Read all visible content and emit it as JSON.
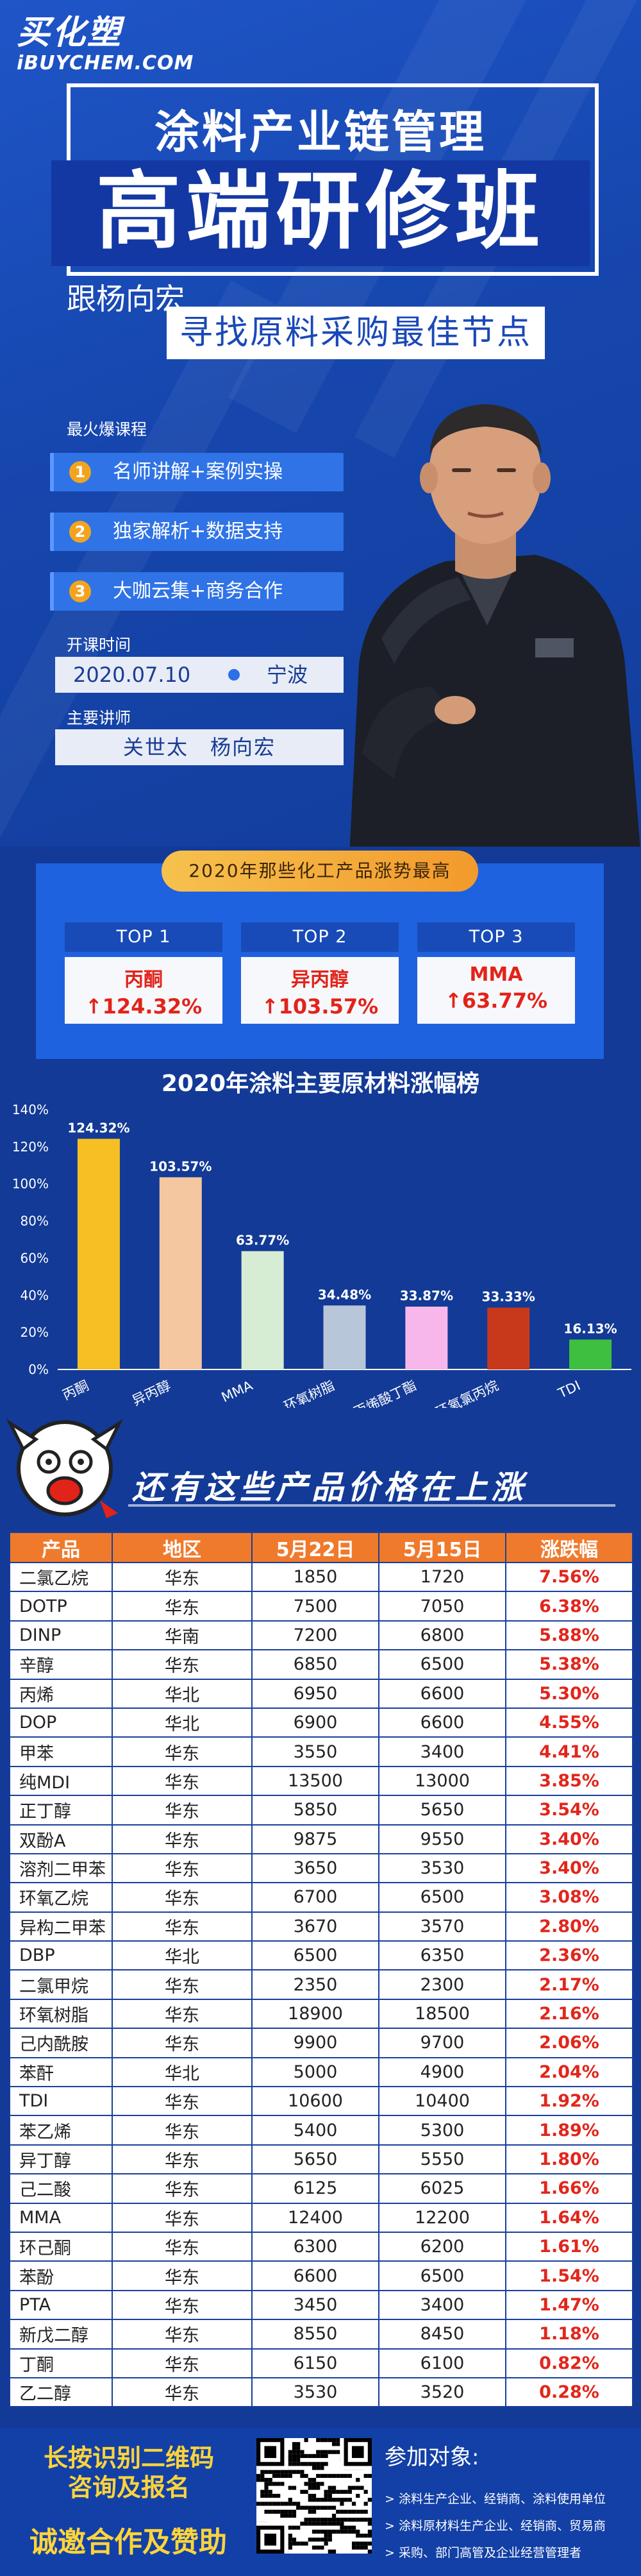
{
  "brand": {
    "name_cn": "买化塑",
    "name_en": "iBUYCHEM.COM"
  },
  "hero": {
    "title1": "涂料产业链管理",
    "title2": "高端研修班",
    "subtitle1": "跟杨向宏",
    "subtitle2": "寻找原料采购最佳节点",
    "courses_label": "最火爆课程",
    "courses": [
      {
        "num": "1",
        "text": "名师讲解+案例实操"
      },
      {
        "num": "2",
        "text": "独家解析+数据支持"
      },
      {
        "num": "3",
        "text": "大咖云集+商务合作"
      }
    ],
    "date_label": "开课时间",
    "date": "2020.07.10",
    "city": "宁波",
    "lecturer_label": "主要讲师",
    "lecturers": "关世太　杨向宏"
  },
  "top3": {
    "banner": "2020年那些化工产品涨势最高",
    "items": [
      {
        "rank": "TOP 1",
        "name": "丙酮",
        "pct": "↑124.32%"
      },
      {
        "rank": "TOP 2",
        "name": "异丙醇",
        "pct": "↑103.57%"
      },
      {
        "rank": "TOP 3",
        "name": "MMA",
        "pct": "↑63.77%"
      }
    ]
  },
  "chart_data": {
    "type": "bar",
    "title": "2020年涂料主要原材料涨幅榜",
    "categories": [
      "丙酮",
      "异丙醇",
      "MMA",
      "环氧树脂",
      "丙烯酸丁酯",
      "环氧氯丙烷",
      "TDI"
    ],
    "values": [
      124.32,
      103.57,
      63.77,
      34.48,
      33.87,
      33.33,
      16.13
    ],
    "value_labels": [
      "124.32%",
      "103.57%",
      "63.77%",
      "34.48%",
      "33.87%",
      "33.33%",
      "16.13%"
    ],
    "colors": [
      "#f6c024",
      "#f4c7a1",
      "#d6ecd3",
      "#b7c6d8",
      "#f7b7ea",
      "#c8391b",
      "#3fbf3f"
    ],
    "ylim": [
      0,
      140
    ],
    "yticks": [
      "0%",
      "20%",
      "40%",
      "60%",
      "80%",
      "100%",
      "120%",
      "140%"
    ],
    "grid": false,
    "xlabel": "",
    "ylabel": ""
  },
  "banner2": {
    "text": "还有这些产品价格在上涨"
  },
  "table": {
    "headers": [
      "产品",
      "地区",
      "5月22日",
      "5月15日",
      "涨跌幅"
    ],
    "rows": [
      [
        "二氯乙烷",
        "华东",
        "1850",
        "1720",
        "7.56%"
      ],
      [
        "DOTP",
        "华东",
        "7500",
        "7050",
        "6.38%"
      ],
      [
        "DINP",
        "华南",
        "7200",
        "6800",
        "5.88%"
      ],
      [
        "辛醇",
        "华东",
        "6850",
        "6500",
        "5.38%"
      ],
      [
        "丙烯",
        "华北",
        "6950",
        "6600",
        "5.30%"
      ],
      [
        "DOP",
        "华北",
        "6900",
        "6600",
        "4.55%"
      ],
      [
        "甲苯",
        "华东",
        "3550",
        "3400",
        "4.41%"
      ],
      [
        "纯MDI",
        "华东",
        "13500",
        "13000",
        "3.85%"
      ],
      [
        "正丁醇",
        "华东",
        "5850",
        "5650",
        "3.54%"
      ],
      [
        "双酚A",
        "华东",
        "9875",
        "9550",
        "3.40%"
      ],
      [
        "溶剂二甲苯",
        "华东",
        "3650",
        "3530",
        "3.40%"
      ],
      [
        "环氧乙烷",
        "华东",
        "6700",
        "6500",
        "3.08%"
      ],
      [
        "异构二甲苯",
        "华东",
        "3670",
        "3570",
        "2.80%"
      ],
      [
        "DBP",
        "华北",
        "6500",
        "6350",
        "2.36%"
      ],
      [
        "二氯甲烷",
        "华东",
        "2350",
        "2300",
        "2.17%"
      ],
      [
        "环氧树脂",
        "华东",
        "18900",
        "18500",
        "2.16%"
      ],
      [
        "己内酰胺",
        "华东",
        "9900",
        "9700",
        "2.06%"
      ],
      [
        "苯酐",
        "华北",
        "5000",
        "4900",
        "2.04%"
      ],
      [
        "TDI",
        "华东",
        "10600",
        "10400",
        "1.92%"
      ],
      [
        "苯乙烯",
        "华东",
        "5400",
        "5300",
        "1.89%"
      ],
      [
        "异丁醇",
        "华东",
        "5650",
        "5550",
        "1.80%"
      ],
      [
        "己二酸",
        "华东",
        "6125",
        "6025",
        "1.66%"
      ],
      [
        "MMA",
        "华东",
        "12400",
        "12200",
        "1.64%"
      ],
      [
        "环己酮",
        "华东",
        "6300",
        "6200",
        "1.61%"
      ],
      [
        "苯酚",
        "华东",
        "6600",
        "6500",
        "1.54%"
      ],
      [
        "PTA",
        "华东",
        "3450",
        "3400",
        "1.47%"
      ],
      [
        "新戊二醇",
        "华东",
        "8550",
        "8450",
        "1.18%"
      ],
      [
        "丁酮",
        "华东",
        "6150",
        "6100",
        "0.82%"
      ],
      [
        "乙二醇",
        "华东",
        "3530",
        "3520",
        "0.28%"
      ]
    ]
  },
  "footer": {
    "left_line1": "长按识别二维码",
    "left_line2": "咨询及报名",
    "left_line3": "诚邀合作及赞助",
    "audience_title": "参加对象:",
    "audience": [
      "> 涂料生产企业、经销商、涂料使用单位",
      "> 涂料原材料生产企业、经销商、贸易商",
      "> 采购、部门高管及企业经营管理者"
    ]
  }
}
